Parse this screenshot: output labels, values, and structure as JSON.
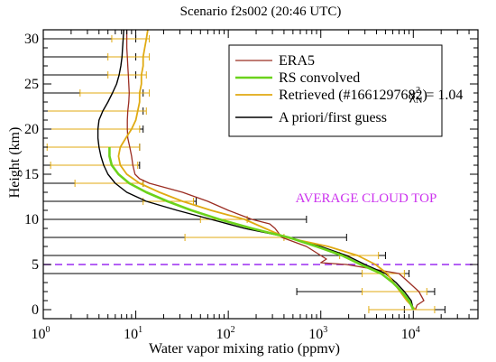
{
  "chart_data": {
    "type": "line",
    "title": "Scenario f2s002 (20:46 UTC)",
    "xlabel": "Water vapor mixing ratio (ppmv)",
    "ylabel": "Height (km)",
    "xscale": "log",
    "xlim": [
      1,
      50000
    ],
    "ylim": [
      -1,
      31
    ],
    "xticks": [
      {
        "value": 1,
        "mantissa": "10",
        "exp": "0"
      },
      {
        "value": 10,
        "mantissa": "10",
        "exp": "1"
      },
      {
        "value": 100,
        "mantissa": "10",
        "exp": "2"
      },
      {
        "value": 1000,
        "mantissa": "10",
        "exp": "3"
      },
      {
        "value": 10000,
        "mantissa": "10",
        "exp": "4"
      }
    ],
    "yticks": [
      0,
      5,
      10,
      15,
      20,
      25,
      30
    ],
    "legend_position": "top-right",
    "chi_label": {
      "chi": "χ",
      "sup": "2",
      "sub": "N",
      "value": "= 1.04"
    },
    "annotation": {
      "text": "AVERAGE CLOUD TOP",
      "height_km": 5,
      "color": "#cc33ee"
    },
    "series": [
      {
        "name": "ERA5",
        "color": "#9b2d22",
        "width": 1.3,
        "points": [
          [
            10500,
            0
          ],
          [
            11000,
            0.5
          ],
          [
            13000,
            1
          ],
          [
            11500,
            2
          ],
          [
            9000,
            3
          ],
          [
            7000,
            4
          ],
          [
            1900,
            5
          ],
          [
            1000,
            5.2
          ],
          [
            1150,
            5.6
          ],
          [
            1000,
            6
          ],
          [
            700,
            7
          ],
          [
            380,
            8
          ],
          [
            320,
            9
          ],
          [
            280,
            9.5
          ],
          [
            180,
            10
          ],
          [
            100,
            11
          ],
          [
            60,
            12
          ],
          [
            32,
            13
          ],
          [
            14,
            14
          ],
          [
            11,
            14.5
          ],
          [
            9.8,
            15
          ],
          [
            9.3,
            16
          ],
          [
            9.0,
            17
          ],
          [
            8.6,
            18
          ],
          [
            8.2,
            19
          ],
          [
            8.1,
            20
          ],
          [
            8.1,
            21
          ],
          [
            8.2,
            22
          ],
          [
            8.4,
            23
          ],
          [
            8.5,
            24
          ],
          [
            8.4,
            25
          ],
          [
            8.3,
            26
          ],
          [
            8.2,
            27
          ],
          [
            8.1,
            28
          ],
          [
            8.0,
            29
          ],
          [
            8.0,
            30
          ],
          [
            8.0,
            31
          ]
        ]
      },
      {
        "name": "RS convolved",
        "color": "#6bd21b",
        "width": 2.6,
        "points": [
          [
            10000,
            0
          ],
          [
            9000,
            1
          ],
          [
            7500,
            2
          ],
          [
            6000,
            3
          ],
          [
            4500,
            4
          ],
          [
            2700,
            5
          ],
          [
            1700,
            6
          ],
          [
            900,
            7
          ],
          [
            450,
            8
          ],
          [
            280,
            8.5
          ],
          [
            180,
            9
          ],
          [
            80,
            10
          ],
          [
            40,
            11
          ],
          [
            22,
            12
          ],
          [
            13,
            13
          ],
          [
            8.5,
            14
          ],
          [
            6.5,
            15
          ],
          [
            5.5,
            16
          ],
          [
            5.2,
            17
          ],
          [
            5.2,
            18
          ]
        ]
      },
      {
        "name": "Retrieved (#1661297682)",
        "color": "#e0aa12",
        "width": 1.8,
        "points": [
          [
            10500,
            0
          ],
          [
            8500,
            1
          ],
          [
            7200,
            2
          ],
          [
            6100,
            3
          ],
          [
            5200,
            4
          ],
          [
            3900,
            5
          ],
          [
            2500,
            6
          ],
          [
            1200,
            7
          ],
          [
            420,
            8
          ],
          [
            250,
            9
          ],
          [
            150,
            10
          ],
          [
            65,
            11
          ],
          [
            32,
            12
          ],
          [
            18,
            13
          ],
          [
            11,
            14
          ],
          [
            8,
            15
          ],
          [
            6.8,
            16
          ],
          [
            6.5,
            17
          ],
          [
            6.8,
            18
          ],
          [
            7.8,
            19
          ],
          [
            9,
            20
          ],
          [
            10,
            21
          ],
          [
            10.5,
            22
          ],
          [
            11,
            23
          ],
          [
            11,
            24
          ],
          [
            11.5,
            25
          ],
          [
            11.5,
            26
          ],
          [
            12,
            27
          ],
          [
            12,
            28
          ],
          [
            12.5,
            29
          ],
          [
            13,
            30
          ],
          [
            13.5,
            31
          ]
        ]
      },
      {
        "name": "A priori/first guess",
        "color": "#000000",
        "width": 1.4,
        "points": [
          [
            10000,
            0
          ],
          [
            9500,
            1
          ],
          [
            8000,
            2
          ],
          [
            6500,
            3
          ],
          [
            5000,
            4
          ],
          [
            3000,
            5
          ],
          [
            1900,
            6
          ],
          [
            1000,
            7
          ],
          [
            450,
            8
          ],
          [
            150,
            9
          ],
          [
            65,
            10
          ],
          [
            28,
            11
          ],
          [
            13,
            12
          ],
          [
            8,
            13
          ],
          [
            6,
            14
          ],
          [
            5,
            15
          ],
          [
            4.5,
            16
          ],
          [
            4.2,
            17
          ],
          [
            4.0,
            18
          ],
          [
            3.9,
            19
          ],
          [
            3.9,
            20
          ],
          [
            4.0,
            21
          ],
          [
            4.4,
            22
          ],
          [
            5,
            23
          ],
          [
            5.6,
            24
          ],
          [
            6.2,
            25
          ],
          [
            6.6,
            26
          ],
          [
            6.9,
            27
          ],
          [
            7.1,
            28
          ],
          [
            7.2,
            29
          ],
          [
            7.3,
            30
          ],
          [
            7.4,
            31
          ]
        ]
      }
    ],
    "error_bars": {
      "black_color": "#000000",
      "orange_color": "#e0aa12",
      "levels": [
        {
          "height_km": 30,
          "black": [
            1,
            10
          ],
          "orange": [
            5.5,
            14
          ]
        },
        {
          "height_km": 28,
          "black": [
            1,
            10
          ],
          "orange": [
            5,
            14
          ]
        },
        {
          "height_km": 26,
          "black": [
            1,
            10
          ],
          "orange": [
            5,
            13
          ]
        },
        {
          "height_km": 24,
          "black": [
            1,
            12
          ],
          "orange": [
            2.5,
            14
          ]
        },
        {
          "height_km": 22,
          "black": [
            1,
            12
          ],
          "orange": [
            1,
            13
          ]
        },
        {
          "height_km": 20,
          "black": [
            1,
            12
          ],
          "orange": [
            1,
            11
          ]
        },
        {
          "height_km": 18,
          "black": [
            1,
            11
          ],
          "orange": [
            1.1,
            11
          ]
        },
        {
          "height_km": 16,
          "black": [
            1,
            11
          ],
          "orange": [
            1.2,
            10.5
          ]
        },
        {
          "height_km": 14,
          "black": [
            1,
            12
          ],
          "orange": [
            2.2,
            12
          ]
        },
        {
          "height_km": 12,
          "black": [
            1,
            45
          ],
          "orange": [
            12,
            42
          ]
        },
        {
          "height_km": 10,
          "black": [
            1,
            700
          ],
          "orange": [
            50,
            160
          ]
        },
        {
          "height_km": 8,
          "black": [
            1,
            1900
          ],
          "orange": [
            34,
            400
          ]
        },
        {
          "height_km": 6,
          "black": [
            1,
            5000
          ],
          "orange": [
            1600,
            4200
          ]
        },
        {
          "height_km": 4,
          "black": [
            1,
            9000
          ],
          "orange": [
            2800,
            8000
          ]
        },
        {
          "height_km": 2,
          "black": [
            550,
            17000
          ],
          "orange": [
            2800,
            14000
          ]
        },
        {
          "height_km": 0,
          "black": [
            8000,
            22000
          ],
          "orange": [
            3300,
            17000
          ]
        }
      ]
    }
  }
}
